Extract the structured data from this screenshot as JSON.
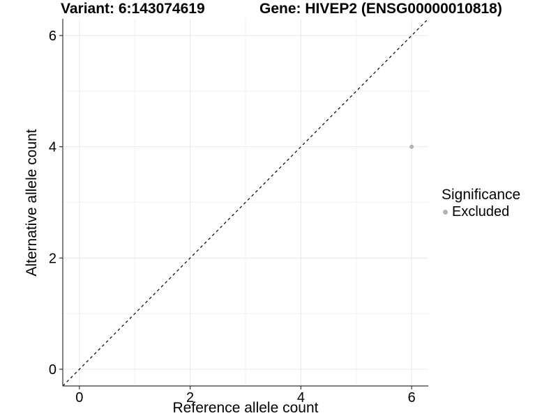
{
  "title": {
    "variant": "Variant: 6:143074619",
    "gene": "Gene: HIVEP2 (ENSG00000010818)"
  },
  "chart_data": {
    "type": "scatter",
    "title": "Variant: 6:143074619   Gene: HIVEP2 (ENSG00000010818)",
    "xlabel": "Reference allele count",
    "ylabel": "Alternative allele count",
    "xlim": [
      -0.3,
      6.3
    ],
    "ylim": [
      -0.3,
      6.3
    ],
    "x_ticks": [
      0,
      2,
      4,
      6
    ],
    "y_ticks": [
      0,
      2,
      4,
      6
    ],
    "x_minor_ticks": [
      1,
      3,
      5
    ],
    "y_minor_ticks": [
      1,
      3,
      5
    ],
    "grid": true,
    "series": [
      {
        "name": "Excluded",
        "color": "#b3b3b3",
        "points": [
          {
            "x": 6,
            "y": 4
          }
        ]
      }
    ],
    "reference_line": {
      "type": "identity",
      "label": "y = x",
      "style": "dashed",
      "color": "#000000"
    },
    "legend": {
      "title": "Significance",
      "position": "right",
      "items": [
        {
          "label": "Excluded",
          "color": "#b3b3b3"
        }
      ]
    }
  },
  "colors": {
    "background": "#ffffff",
    "axis_line": "#333333",
    "tick_mark": "#333333",
    "text": "#000000",
    "grid_major": "#e8e8e8",
    "grid_minor": "#f2f2f2",
    "point": "#b3b3b3",
    "reference_line": "#000000"
  }
}
